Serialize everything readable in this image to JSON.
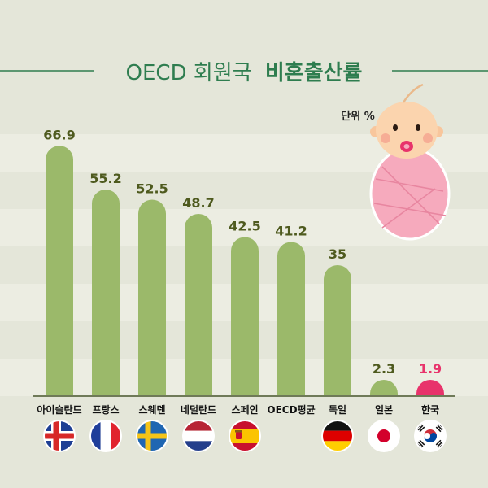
{
  "header": {
    "title_light": "OECD 회원국",
    "title_bold": "비혼출산률"
  },
  "unit_label": "단위 %",
  "chart_data": {
    "type": "bar",
    "title": "OECD 회원국 비혼출산률",
    "unit": "단위 %",
    "categories": [
      "아이슬란드",
      "프랑스",
      "스웨덴",
      "네덜란드",
      "스페인",
      "OECD평균",
      "독일",
      "일본",
      "한국"
    ],
    "values": [
      66.9,
      55.2,
      52.5,
      48.7,
      42.5,
      41.2,
      35,
      2.3,
      1.9
    ],
    "value_labels": [
      "66.9",
      "55.2",
      "52.5",
      "48.7",
      "42.5",
      "41.2",
      "35",
      "2.3",
      "1.9"
    ],
    "ylim": [
      0,
      70
    ],
    "grid": true,
    "flags": [
      "iceland",
      "france",
      "sweden",
      "netherlands",
      "spain",
      "",
      "germany",
      "japan",
      "korea"
    ],
    "colors": {
      "bar": "#9bb96a",
      "highlight_bar": "#e8336b",
      "value_text": "#4e5a1e",
      "highlight_text": "#e8336b"
    },
    "highlight_index": 8
  },
  "colors": {
    "title_green": "#2e7d4f",
    "background": "#e4e6d9",
    "stripe": "#ecede2"
  }
}
